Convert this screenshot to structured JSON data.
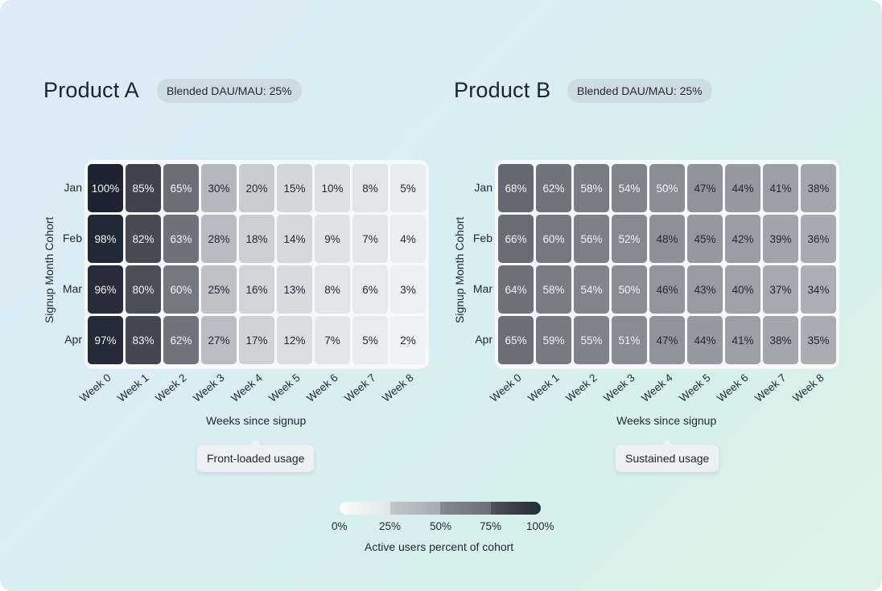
{
  "chart_data": [
    {
      "type": "heatmap",
      "title": "Product A",
      "badge": "Blended DAU/MAU: 25%",
      "xlabel": "Weeks since signup",
      "ylabel": "Signup Month Cohort",
      "x_categories": [
        "Week 0",
        "Week 1",
        "Week 2",
        "Week 3",
        "Week 4",
        "Week 5",
        "Week 6",
        "Week 7",
        "Week 8"
      ],
      "y_categories": [
        "Jan",
        "Feb",
        "Mar",
        "Apr"
      ],
      "values": [
        [
          100,
          85,
          65,
          30,
          20,
          15,
          10,
          8,
          5
        ],
        [
          98,
          82,
          63,
          28,
          18,
          14,
          9,
          7,
          4
        ],
        [
          96,
          80,
          60,
          25,
          16,
          13,
          8,
          6,
          3
        ],
        [
          97,
          83,
          62,
          27,
          17,
          12,
          7,
          5,
          2
        ]
      ],
      "annotation": "Front-loaded usage"
    },
    {
      "type": "heatmap",
      "title": "Product B",
      "badge": "Blended DAU/MAU: 25%",
      "xlabel": "Weeks since signup",
      "ylabel": "Signup Month Cohort",
      "x_categories": [
        "Week 0",
        "Week 1",
        "Week 2",
        "Week 3",
        "Week 4",
        "Week 5",
        "Week 6",
        "Week 7",
        "Week 8"
      ],
      "y_categories": [
        "Jan",
        "Feb",
        "Mar",
        "Apr"
      ],
      "values": [
        [
          68,
          62,
          58,
          54,
          50,
          47,
          44,
          41,
          38
        ],
        [
          66,
          60,
          56,
          52,
          48,
          45,
          42,
          39,
          36
        ],
        [
          64,
          58,
          54,
          50,
          46,
          43,
          40,
          37,
          34
        ],
        [
          65,
          59,
          55,
          51,
          47,
          44,
          41,
          38,
          35
        ]
      ],
      "annotation": "Sustained usage"
    }
  ],
  "legend": {
    "title": "Active users percent of cohort",
    "ticks": [
      "0%",
      "25%",
      "50%",
      "75%",
      "100%"
    ],
    "range": [
      0,
      100
    ],
    "colors": [
      "#f5f6f7",
      "#b4b7bb",
      "#6f747c",
      "#1e2532"
    ]
  }
}
